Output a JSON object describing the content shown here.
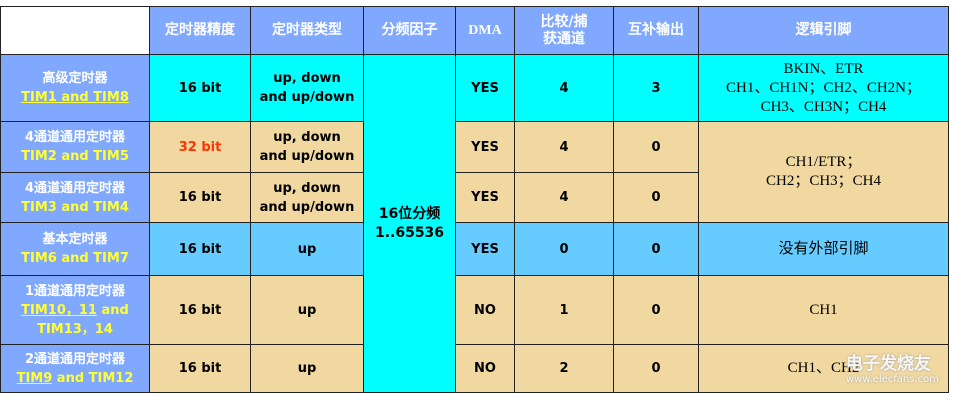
{
  "headers": {
    "precision": "定时器精度",
    "type": "定时器类型",
    "prescaler": "分频因子",
    "dma": "DMA",
    "channels": "比较/捕获通道",
    "complementary": "互补输出",
    "pins": "逻辑引脚"
  },
  "prescaler": {
    "line1": "16位分频",
    "line2": "1..65536"
  },
  "rows": [
    {
      "name": "高级定时器",
      "tim": "TIM1 and TIM8",
      "precision": "16 bit",
      "type": "up, down and up/down",
      "dma": "YES",
      "channels": "4",
      "comp": "3",
      "pins": [
        "BKIN、ETR",
        "CH1、CH1N；CH2、CH2N；",
        "CH3、CH3N；CH4"
      ]
    },
    {
      "name": "4通道通用定时器",
      "tim": "TIM2 and TIM5",
      "precision": "32 bit",
      "type": "up, down and up/down",
      "dma": "YES",
      "channels": "4",
      "comp": "0",
      "pins": [
        "CH1/ETR；",
        "CH2；CH3；CH4"
      ]
    },
    {
      "name": "4通道通用定时器",
      "tim": "TIM3 and TIM4",
      "precision": "16 bit",
      "type": "up, down and up/down",
      "dma": "YES",
      "channels": "4",
      "comp": "0"
    },
    {
      "name": "基本定时器",
      "tim": "TIM6 and TIM7",
      "precision": "16 bit",
      "type": "up",
      "dma": "YES",
      "channels": "0",
      "comp": "0",
      "pins": [
        "没有外部引脚"
      ]
    },
    {
      "name": "1通道通用定时器",
      "tim_a": "TIM10，11",
      "tim_b": " and",
      "tim_c": "TIM13，14",
      "precision": "16 bit",
      "type": "up",
      "dma": "NO",
      "channels": "1",
      "comp": "0",
      "pins": [
        "CH1"
      ]
    },
    {
      "name": "2通道通用定时器",
      "tim_a": "TIM9",
      "tim_b": " and TIM12",
      "precision": "16 bit",
      "type": "up",
      "dma": "NO",
      "channels": "2",
      "comp": "0",
      "pins": [
        "CH1、CH2"
      ]
    }
  ],
  "colors": {
    "header": "#80A8FF",
    "advanced": "#00FFFF",
    "general": "#F0D8A0",
    "basic": "#66CCFF",
    "tim_label": "#FFFF33",
    "highlight": "#FF3300"
  },
  "watermark": {
    "text": "电子发烧友",
    "url": "www.elecfans.com"
  }
}
